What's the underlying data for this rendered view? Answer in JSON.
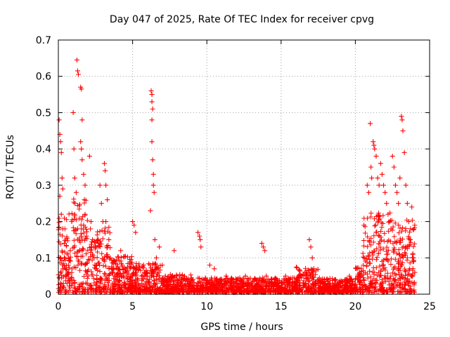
{
  "chart_data": {
    "type": "scatter",
    "title": "Day 047 of 2025, Rate Of TEC Index for receiver cpvg",
    "xlabel": "GPS time / hours",
    "ylabel": "ROTI / TECUs",
    "xlim": [
      0,
      25
    ],
    "ylim": [
      0,
      0.7
    ],
    "xticks": [
      0,
      5,
      10,
      15,
      20,
      25
    ],
    "yticks": [
      0,
      0.1,
      0.2,
      0.3,
      0.4,
      0.5,
      0.6,
      0.7
    ],
    "xtick_labels": [
      "0",
      "5",
      "10",
      "15",
      "20",
      "25"
    ],
    "ytick_labels": [
      "0",
      "0.1",
      "0.2",
      "0.3",
      "0.4",
      "0.5",
      "0.6",
      "0.7"
    ],
    "grid": true,
    "marker": "+",
    "color": "#ff0000",
    "series": [
      {
        "name": "ROTI",
        "points": [
          [
            0.05,
            0.48
          ],
          [
            0.1,
            0.44
          ],
          [
            0.15,
            0.42
          ],
          [
            0.2,
            0.39
          ],
          [
            0.25,
            0.32
          ],
          [
            0.3,
            0.29
          ],
          [
            0.1,
            0.27
          ],
          [
            0.2,
            0.22
          ],
          [
            0.3,
            0.18
          ],
          [
            0.4,
            0.14
          ],
          [
            0.15,
            0.1
          ],
          [
            0.3,
            0.07
          ],
          [
            0.5,
            0.05
          ],
          [
            0.7,
            0.06
          ],
          [
            0.8,
            0.12
          ],
          [
            0.9,
            0.2
          ],
          [
            1.0,
            0.5
          ],
          [
            1.05,
            0.4
          ],
          [
            1.1,
            0.32
          ],
          [
            1.2,
            0.28
          ],
          [
            1.1,
            0.22
          ],
          [
            1.3,
            0.18
          ],
          [
            1.25,
            0.645
          ],
          [
            1.3,
            0.615
          ],
          [
            1.35,
            0.605
          ],
          [
            1.5,
            0.57
          ],
          [
            1.55,
            0.565
          ],
          [
            1.6,
            0.48
          ],
          [
            1.5,
            0.42
          ],
          [
            1.55,
            0.4
          ],
          [
            1.6,
            0.37
          ],
          [
            1.7,
            0.33
          ],
          [
            1.8,
            0.3
          ],
          [
            1.75,
            0.26
          ],
          [
            1.8,
            0.22
          ],
          [
            1.7,
            0.19
          ],
          [
            1.9,
            0.16
          ],
          [
            1.6,
            0.12
          ],
          [
            1.8,
            0.08
          ],
          [
            2.0,
            0.05
          ],
          [
            2.1,
            0.38
          ],
          [
            2.2,
            0.2
          ],
          [
            2.3,
            0.15
          ],
          [
            2.4,
            0.1
          ],
          [
            2.5,
            0.07
          ],
          [
            2.6,
            0.04
          ],
          [
            2.8,
            0.3
          ],
          [
            2.9,
            0.25
          ],
          [
            3.0,
            0.2
          ],
          [
            3.1,
            0.36
          ],
          [
            3.15,
            0.34
          ],
          [
            3.2,
            0.3
          ],
          [
            3.3,
            0.26
          ],
          [
            3.2,
            0.2
          ],
          [
            3.4,
            0.15
          ],
          [
            3.5,
            0.1
          ],
          [
            3.6,
            0.07
          ],
          [
            3.8,
            0.05
          ],
          [
            4.0,
            0.04
          ],
          [
            4.2,
            0.12
          ],
          [
            4.3,
            0.08
          ],
          [
            4.5,
            0.06
          ],
          [
            4.6,
            0.05
          ],
          [
            4.8,
            0.04
          ],
          [
            5.0,
            0.2
          ],
          [
            5.1,
            0.19
          ],
          [
            5.2,
            0.17
          ],
          [
            5.0,
            0.05
          ],
          [
            5.3,
            0.04
          ],
          [
            5.6,
            0.05
          ],
          [
            5.8,
            0.06
          ],
          [
            6.0,
            0.05
          ],
          [
            6.2,
            0.23
          ],
          [
            6.25,
            0.56
          ],
          [
            6.3,
            0.55
          ],
          [
            6.3,
            0.53
          ],
          [
            6.35,
            0.51
          ],
          [
            6.3,
            0.48
          ],
          [
            6.3,
            0.42
          ],
          [
            6.35,
            0.37
          ],
          [
            6.4,
            0.33
          ],
          [
            6.4,
            0.3
          ],
          [
            6.45,
            0.28
          ],
          [
            6.5,
            0.15
          ],
          [
            6.6,
            0.1
          ],
          [
            6.8,
            0.13
          ],
          [
            7.0,
            0.08
          ],
          [
            7.2,
            0.05
          ],
          [
            7.5,
            0.04
          ],
          [
            7.8,
            0.12
          ],
          [
            8.0,
            0.04
          ],
          [
            8.2,
            0.03
          ],
          [
            8.5,
            0.05
          ],
          [
            8.8,
            0.03
          ],
          [
            9.0,
            0.04
          ],
          [
            9.4,
            0.17
          ],
          [
            9.5,
            0.16
          ],
          [
            9.55,
            0.15
          ],
          [
            9.6,
            0.13
          ],
          [
            9.8,
            0.04
          ],
          [
            10.0,
            0.03
          ],
          [
            10.2,
            0.08
          ],
          [
            10.5,
            0.07
          ],
          [
            10.8,
            0.03
          ],
          [
            11.0,
            0.04
          ],
          [
            11.3,
            0.05
          ],
          [
            11.6,
            0.03
          ],
          [
            12.0,
            0.04
          ],
          [
            12.3,
            0.03
          ],
          [
            12.6,
            0.05
          ],
          [
            13.0,
            0.03
          ],
          [
            13.3,
            0.04
          ],
          [
            13.7,
            0.14
          ],
          [
            13.8,
            0.13
          ],
          [
            13.9,
            0.12
          ],
          [
            14.0,
            0.05
          ],
          [
            14.3,
            0.03
          ],
          [
            14.6,
            0.04
          ],
          [
            15.0,
            0.03
          ],
          [
            15.3,
            0.05
          ],
          [
            15.6,
            0.04
          ],
          [
            16.0,
            0.03
          ],
          [
            16.3,
            0.05
          ],
          [
            16.6,
            0.06
          ],
          [
            16.9,
            0.15
          ],
          [
            17.0,
            0.13
          ],
          [
            17.1,
            0.1
          ],
          [
            17.2,
            0.07
          ],
          [
            17.5,
            0.04
          ],
          [
            17.8,
            0.03
          ],
          [
            18.0,
            0.02
          ],
          [
            18.3,
            0.03
          ],
          [
            18.6,
            0.04
          ],
          [
            19.0,
            0.03
          ],
          [
            19.3,
            0.04
          ],
          [
            19.6,
            0.05
          ],
          [
            20.0,
            0.04
          ],
          [
            20.3,
            0.06
          ],
          [
            20.6,
            0.1
          ],
          [
            20.8,
            0.3
          ],
          [
            20.9,
            0.28
          ],
          [
            21.0,
            0.47
          ],
          [
            21.05,
            0.35
          ],
          [
            21.1,
            0.32
          ],
          [
            21.2,
            0.42
          ],
          [
            21.25,
            0.41
          ],
          [
            21.3,
            0.4
          ],
          [
            21.4,
            0.38
          ],
          [
            21.5,
            0.32
          ],
          [
            21.6,
            0.3
          ],
          [
            21.7,
            0.36
          ],
          [
            21.8,
            0.33
          ],
          [
            21.9,
            0.3
          ],
          [
            22.0,
            0.28
          ],
          [
            22.1,
            0.25
          ],
          [
            22.2,
            0.22
          ],
          [
            22.3,
            0.2
          ],
          [
            22.4,
            0.18
          ],
          [
            22.5,
            0.38
          ],
          [
            22.6,
            0.35
          ],
          [
            22.7,
            0.3
          ],
          [
            22.8,
            0.28
          ],
          [
            22.9,
            0.25
          ],
          [
            23.0,
            0.32
          ],
          [
            23.1,
            0.49
          ],
          [
            23.15,
            0.48
          ],
          [
            23.2,
            0.45
          ],
          [
            23.3,
            0.39
          ],
          [
            23.4,
            0.3
          ],
          [
            23.5,
            0.25
          ],
          [
            23.6,
            0.2
          ],
          [
            23.7,
            0.15
          ],
          [
            23.8,
            0.24
          ],
          [
            23.9,
            0.1
          ],
          [
            24.0,
            0.06
          ],
          [
            23.95,
            0.03
          ]
        ]
      }
    ]
  }
}
